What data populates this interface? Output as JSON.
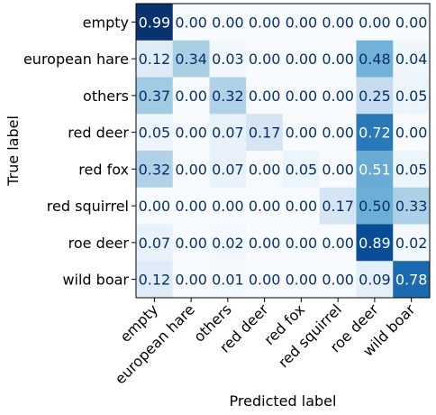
{
  "chart_data": {
    "type": "heatmap",
    "title": "",
    "xlabel": "Predicted label",
    "ylabel": "True label",
    "colormap": "Blues",
    "value_range": [
      0,
      1
    ],
    "grid": false,
    "x_categories": [
      "empty",
      "european hare",
      "others",
      "red deer",
      "red fox",
      "red squirrel",
      "roe deer",
      "wild boar"
    ],
    "y_categories": [
      "empty",
      "european hare",
      "others",
      "red deer",
      "red fox",
      "red squirrel",
      "roe deer",
      "wild boar"
    ],
    "values": [
      [
        0.99,
        0.0,
        0.0,
        0.0,
        0.0,
        0.0,
        0.0,
        0.0
      ],
      [
        0.12,
        0.34,
        0.03,
        0.0,
        0.0,
        0.0,
        0.48,
        0.04
      ],
      [
        0.37,
        0.0,
        0.32,
        0.0,
        0.0,
        0.0,
        0.25,
        0.05
      ],
      [
        0.05,
        0.0,
        0.07,
        0.17,
        0.0,
        0.0,
        0.72,
        0.0
      ],
      [
        0.32,
        0.0,
        0.07,
        0.0,
        0.05,
        0.0,
        0.51,
        0.05
      ],
      [
        0.0,
        0.0,
        0.0,
        0.0,
        0.0,
        0.17,
        0.5,
        0.33
      ],
      [
        0.07,
        0.0,
        0.02,
        0.0,
        0.0,
        0.0,
        0.89,
        0.02
      ],
      [
        0.12,
        0.0,
        0.01,
        0.0,
        0.0,
        0.0,
        0.09,
        0.78
      ]
    ]
  }
}
